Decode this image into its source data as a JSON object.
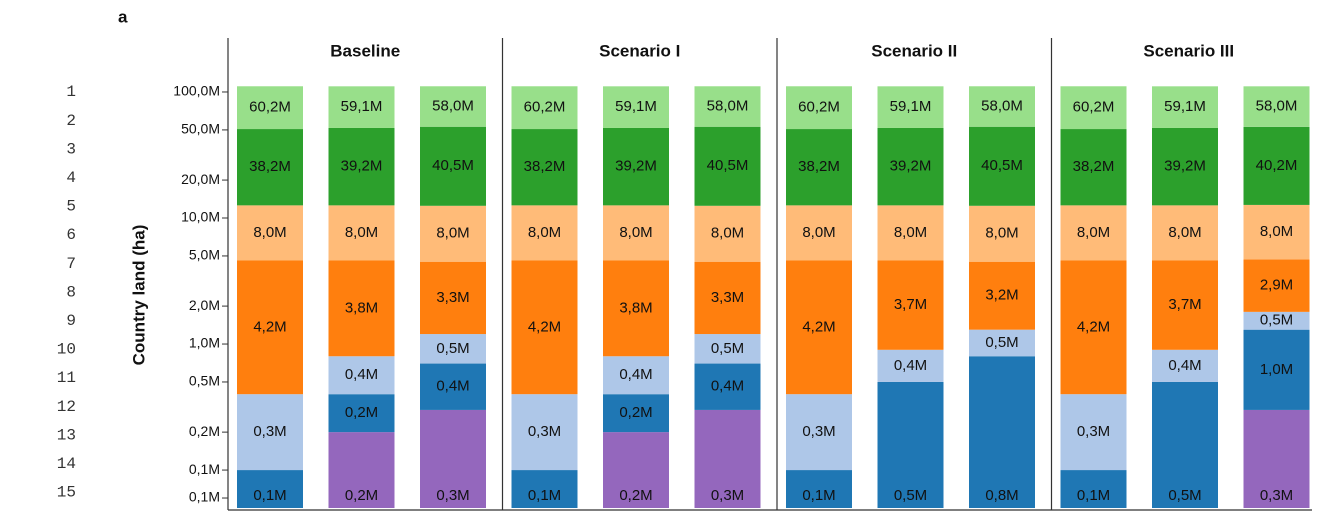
{
  "panel_label": "a",
  "line_numbers": [
    1,
    2,
    3,
    4,
    5,
    6,
    7,
    8,
    9,
    10,
    11,
    12,
    13,
    14,
    15
  ],
  "chart_data": [
    {
      "type": "bar",
      "stacked": true,
      "title": "Baseline",
      "ylabel": "Country land (ha)",
      "log_scale": true,
      "ylim": [
        50000,
        120000000
      ],
      "yticks": [
        {
          "value": 100000000,
          "label": "100,0M"
        },
        {
          "value": 50000000,
          "label": "50,0M"
        },
        {
          "value": 20000000,
          "label": "20,0M"
        },
        {
          "value": 10000000,
          "label": "10,0M"
        },
        {
          "value": 5000000,
          "label": "5,0M"
        },
        {
          "value": 2000000,
          "label": "2,0M"
        },
        {
          "value": 1000000,
          "label": "1,0M"
        },
        {
          "value": 500000,
          "label": "0,5M"
        },
        {
          "value": 200000,
          "label": "0,2M"
        },
        {
          "value": 100000,
          "label": "0,1M"
        },
        {
          "value": 60000,
          "label": "0,1M"
        }
      ],
      "categories": [
        null,
        null,
        null
      ],
      "series": [
        {
          "color": "#9467bd",
          "values": [
            null,
            200000,
            300000
          ],
          "value_labels": [
            null,
            "0,2M",
            "0,3M"
          ]
        },
        {
          "color": "#1f77b4",
          "values": [
            100000,
            200000,
            400000
          ],
          "value_labels": [
            "0,1M",
            "0,2M",
            "0,4M"
          ]
        },
        {
          "color": "#aec7e8",
          "values": [
            300000,
            400000,
            500000
          ],
          "value_labels": [
            "0,3M",
            "0,4M",
            "0,5M"
          ]
        },
        {
          "color": "#ff7f0e",
          "values": [
            4200000,
            3800000,
            3300000
          ],
          "value_labels": [
            "4,2M",
            "3,8M",
            "3,3M"
          ]
        },
        {
          "color": "#ffbb78",
          "values": [
            8000000,
            8000000,
            8000000
          ],
          "value_labels": [
            "8,0M",
            "8,0M",
            "8,0M"
          ]
        },
        {
          "color": "#2ca02c",
          "values": [
            38200000,
            39200000,
            40500000
          ],
          "value_labels": [
            "38,2M",
            "39,2M",
            "40,5M"
          ]
        },
        {
          "color": "#98df8a",
          "values": [
            60200000,
            59100000,
            58000000
          ],
          "value_labels": [
            "60,2M",
            "59,1M",
            "58,0M"
          ]
        }
      ]
    },
    {
      "type": "bar",
      "stacked": true,
      "title": "Scenario I",
      "categories": [
        null,
        null,
        null
      ],
      "series": [
        {
          "color": "#9467bd",
          "values": [
            null,
            200000,
            300000
          ],
          "value_labels": [
            null,
            "0,2M",
            "0,3M"
          ]
        },
        {
          "color": "#1f77b4",
          "values": [
            100000,
            200000,
            400000
          ],
          "value_labels": [
            "0,1M",
            "0,2M",
            "0,4M"
          ]
        },
        {
          "color": "#aec7e8",
          "values": [
            300000,
            400000,
            500000
          ],
          "value_labels": [
            "0,3M",
            "0,4M",
            "0,5M"
          ]
        },
        {
          "color": "#ff7f0e",
          "values": [
            4200000,
            3800000,
            3300000
          ],
          "value_labels": [
            "4,2M",
            "3,8M",
            "3,3M"
          ]
        },
        {
          "color": "#ffbb78",
          "values": [
            8000000,
            8000000,
            8000000
          ],
          "value_labels": [
            "8,0M",
            "8,0M",
            "8,0M"
          ]
        },
        {
          "color": "#2ca02c",
          "values": [
            38200000,
            39200000,
            40500000
          ],
          "value_labels": [
            "38,2M",
            "39,2M",
            "40,5M"
          ]
        },
        {
          "color": "#98df8a",
          "values": [
            60200000,
            59100000,
            58000000
          ],
          "value_labels": [
            "60,2M",
            "59,1M",
            "58,0M"
          ]
        }
      ]
    },
    {
      "type": "bar",
      "stacked": true,
      "title": "Scenario II",
      "categories": [
        null,
        null,
        null
      ],
      "series": [
        {
          "color": "#1f77b4",
          "values": [
            100000,
            500000,
            800000
          ],
          "value_labels": [
            "0,1M",
            "0,5M",
            "0,8M"
          ]
        },
        {
          "color": "#aec7e8",
          "values": [
            300000,
            400000,
            500000
          ],
          "value_labels": [
            "0,3M",
            "0,4M",
            "0,5M"
          ]
        },
        {
          "color": "#ff7f0e",
          "values": [
            4200000,
            3700000,
            3200000
          ],
          "value_labels": [
            "4,2M",
            "3,7M",
            "3,2M"
          ]
        },
        {
          "color": "#ffbb78",
          "values": [
            8000000,
            8000000,
            8000000
          ],
          "value_labels": [
            "8,0M",
            "8,0M",
            "8,0M"
          ]
        },
        {
          "color": "#2ca02c",
          "values": [
            38200000,
            39200000,
            40500000
          ],
          "value_labels": [
            "38,2M",
            "39,2M",
            "40,5M"
          ]
        },
        {
          "color": "#98df8a",
          "values": [
            60200000,
            59100000,
            58000000
          ],
          "value_labels": [
            "60,2M",
            "59,1M",
            "58,0M"
          ]
        }
      ]
    },
    {
      "type": "bar",
      "stacked": true,
      "title": "Scenario III",
      "categories": [
        null,
        null,
        null
      ],
      "series": [
        {
          "color": "#9467bd",
          "values": [
            null,
            null,
            300000
          ],
          "value_labels": [
            null,
            null,
            "0,3M"
          ]
        },
        {
          "color": "#1f77b4",
          "values": [
            100000,
            500000,
            1000000
          ],
          "value_labels": [
            "0,1M",
            "0,5M",
            "1,0M"
          ]
        },
        {
          "color": "#aec7e8",
          "values": [
            300000,
            400000,
            500000
          ],
          "value_labels": [
            "0,3M",
            "0,4M",
            "0,5M"
          ]
        },
        {
          "color": "#ff7f0e",
          "values": [
            4200000,
            3700000,
            2900000
          ],
          "value_labels": [
            "4,2M",
            "3,7M",
            "2,9M"
          ]
        },
        {
          "color": "#ffbb78",
          "values": [
            8000000,
            8000000,
            8000000
          ],
          "value_labels": [
            "8,0M",
            "8,0M",
            "8,0M"
          ]
        },
        {
          "color": "#2ca02c",
          "values": [
            38200000,
            39200000,
            40200000
          ],
          "value_labels": [
            "38,2M",
            "39,2M",
            "40,2M"
          ]
        },
        {
          "color": "#98df8a",
          "values": [
            60200000,
            59100000,
            58000000
          ],
          "value_labels": [
            "60,2M",
            "59,1M",
            "58,0M"
          ]
        }
      ]
    }
  ]
}
